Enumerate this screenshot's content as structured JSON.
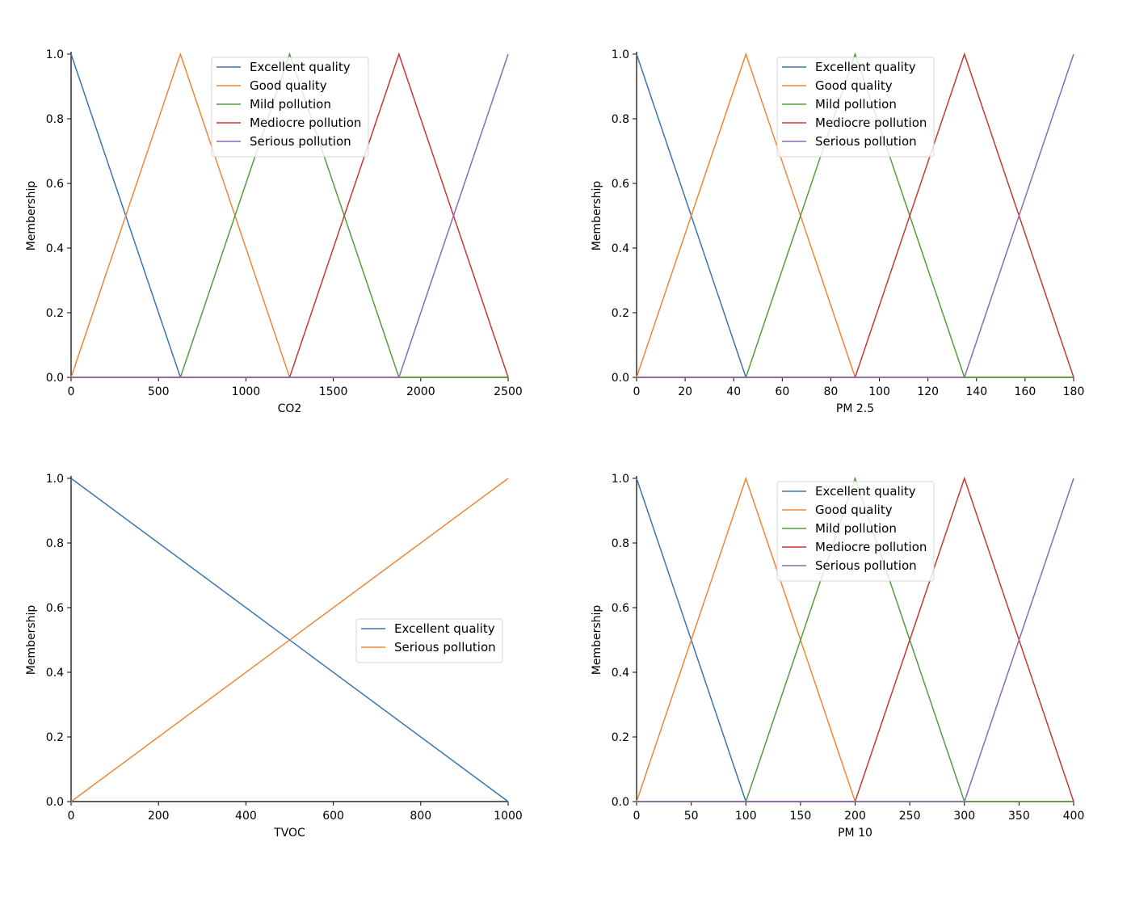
{
  "colors": {
    "excellent": "#3b75af",
    "good": "#ef8636",
    "mild": "#519e3e",
    "mediocre": "#c53932",
    "serious": "#8d69b8"
  },
  "chart_data": [
    {
      "type": "line",
      "xlabel": "CO2",
      "ylabel": "Membership",
      "xlim": [
        0,
        2500
      ],
      "ylim": [
        0,
        1
      ],
      "xticks": [
        0,
        500,
        1000,
        1500,
        2000,
        2500
      ],
      "yticks": [
        "0.0",
        "0.2",
        "0.4",
        "0.6",
        "0.8",
        "1.0"
      ],
      "legend_position": "top-center",
      "series": [
        {
          "name": "Excellent quality",
          "color_key": "excellent",
          "x": [
            0,
            625,
            2500
          ],
          "y": [
            1,
            0,
            0
          ]
        },
        {
          "name": "Good quality",
          "color_key": "good",
          "x": [
            0,
            625,
            1250,
            2500
          ],
          "y": [
            0,
            1,
            0,
            0
          ]
        },
        {
          "name": "Mild pollution",
          "color_key": "mild",
          "x": [
            0,
            625,
            1250,
            1875,
            2500
          ],
          "y": [
            0,
            0,
            1,
            0,
            0
          ]
        },
        {
          "name": "Mediocre pollution",
          "color_key": "mediocre",
          "x": [
            0,
            1250,
            1875,
            2500
          ],
          "y": [
            0,
            0,
            1,
            0
          ]
        },
        {
          "name": "Serious pollution",
          "color_key": "serious",
          "x": [
            0,
            1875,
            2500
          ],
          "y": [
            0,
            0,
            1
          ]
        }
      ]
    },
    {
      "type": "line",
      "xlabel": "PM 2.5",
      "ylabel": "Membership",
      "xlim": [
        0,
        180
      ],
      "ylim": [
        0,
        1
      ],
      "xticks": [
        0,
        20,
        40,
        60,
        80,
        100,
        120,
        140,
        160,
        180
      ],
      "yticks": [
        "0.0",
        "0.2",
        "0.4",
        "0.6",
        "0.8",
        "1.0"
      ],
      "legend_position": "top-center",
      "series": [
        {
          "name": "Excellent quality",
          "color_key": "excellent",
          "x": [
            0,
            45,
            180
          ],
          "y": [
            1,
            0,
            0
          ]
        },
        {
          "name": "Good quality",
          "color_key": "good",
          "x": [
            0,
            45,
            90,
            180
          ],
          "y": [
            0,
            1,
            0,
            0
          ]
        },
        {
          "name": "Mild pollution",
          "color_key": "mild",
          "x": [
            0,
            45,
            90,
            135,
            180
          ],
          "y": [
            0,
            0,
            1,
            0,
            0
          ]
        },
        {
          "name": "Mediocre pollution",
          "color_key": "mediocre",
          "x": [
            0,
            90,
            135,
            180
          ],
          "y": [
            0,
            0,
            1,
            0
          ]
        },
        {
          "name": "Serious pollution",
          "color_key": "serious",
          "x": [
            0,
            135,
            180
          ],
          "y": [
            0,
            0,
            1
          ]
        }
      ]
    },
    {
      "type": "line",
      "xlabel": "TVOC",
      "ylabel": "Membership",
      "xlim": [
        0,
        1000
      ],
      "ylim": [
        0,
        1
      ],
      "xticks": [
        0,
        200,
        400,
        600,
        800,
        1000
      ],
      "yticks": [
        "0.0",
        "0.2",
        "0.4",
        "0.6",
        "0.8",
        "1.0"
      ],
      "legend_position": "center-right",
      "series": [
        {
          "name": "Excellent quality",
          "color_key": "excellent",
          "x": [
            0,
            1000
          ],
          "y": [
            1,
            0
          ]
        },
        {
          "name": "Serious pollution",
          "color_key": "good",
          "x": [
            0,
            1000
          ],
          "y": [
            0,
            1
          ]
        }
      ]
    },
    {
      "type": "line",
      "xlabel": "PM 10",
      "ylabel": "Membership",
      "xlim": [
        0,
        400
      ],
      "ylim": [
        0,
        1
      ],
      "xticks": [
        0,
        50,
        100,
        150,
        200,
        250,
        300,
        350,
        400
      ],
      "yticks": [
        "0.0",
        "0.2",
        "0.4",
        "0.6",
        "0.8",
        "1.0"
      ],
      "legend_position": "top-center",
      "series": [
        {
          "name": "Excellent quality",
          "color_key": "excellent",
          "x": [
            0,
            100,
            400
          ],
          "y": [
            1,
            0,
            0
          ]
        },
        {
          "name": "Good quality",
          "color_key": "good",
          "x": [
            0,
            100,
            200,
            400
          ],
          "y": [
            0,
            1,
            0,
            0
          ]
        },
        {
          "name": "Mild pollution",
          "color_key": "mild",
          "x": [
            0,
            100,
            200,
            300,
            400
          ],
          "y": [
            0,
            0,
            1,
            0,
            0
          ]
        },
        {
          "name": "Mediocre pollution",
          "color_key": "mediocre",
          "x": [
            0,
            200,
            300,
            400
          ],
          "y": [
            0,
            0,
            1,
            0
          ]
        },
        {
          "name": "Serious pollution",
          "color_key": "serious",
          "x": [
            0,
            300,
            400
          ],
          "y": [
            0,
            0,
            1
          ]
        }
      ]
    }
  ]
}
